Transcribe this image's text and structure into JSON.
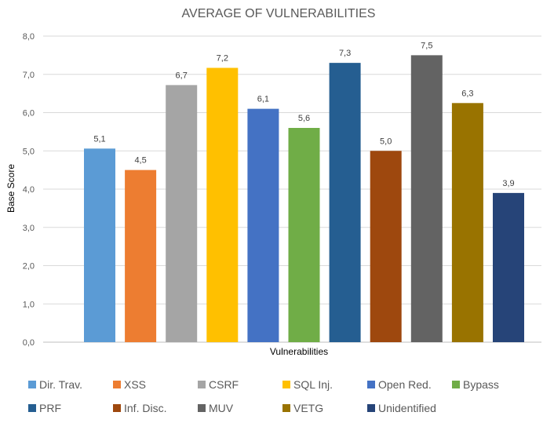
{
  "chart_data": {
    "type": "bar",
    "title": "AVERAGE OF VULNERABILITIES",
    "xlabel": "Vulnerabilities",
    "ylabel": "Base Score",
    "ylim": [
      0,
      8
    ],
    "ytick_labels": [
      "0,0",
      "1,0",
      "2,0",
      "3,0",
      "4,0",
      "5,0",
      "6,0",
      "7,0",
      "8,0"
    ],
    "grid": true,
    "legend_position": "bottom",
    "categories": [
      "Dir. Trav.",
      "XSS",
      "CSRF",
      "SQL Inj.",
      "Open Red.",
      "Bypass",
      "PRF",
      "Inf. Disc.",
      "MUV",
      "VETG",
      "Unidentified"
    ],
    "values": [
      5.06,
      4.5,
      6.72,
      7.17,
      6.1,
      5.6,
      7.3,
      5.0,
      7.5,
      6.25,
      3.9
    ],
    "data_labels": [
      "5,1",
      "4,5",
      "6,7",
      "7,2",
      "6,1",
      "5,6",
      "7,3",
      "5,0",
      "7,5",
      "6,3",
      "3,9"
    ],
    "colors": [
      "#5b9bd5",
      "#ed7d31",
      "#a5a5a5",
      "#ffc000",
      "#4472c4",
      "#70ad47",
      "#255e91",
      "#9e480e",
      "#636363",
      "#997300",
      "#264478"
    ]
  }
}
